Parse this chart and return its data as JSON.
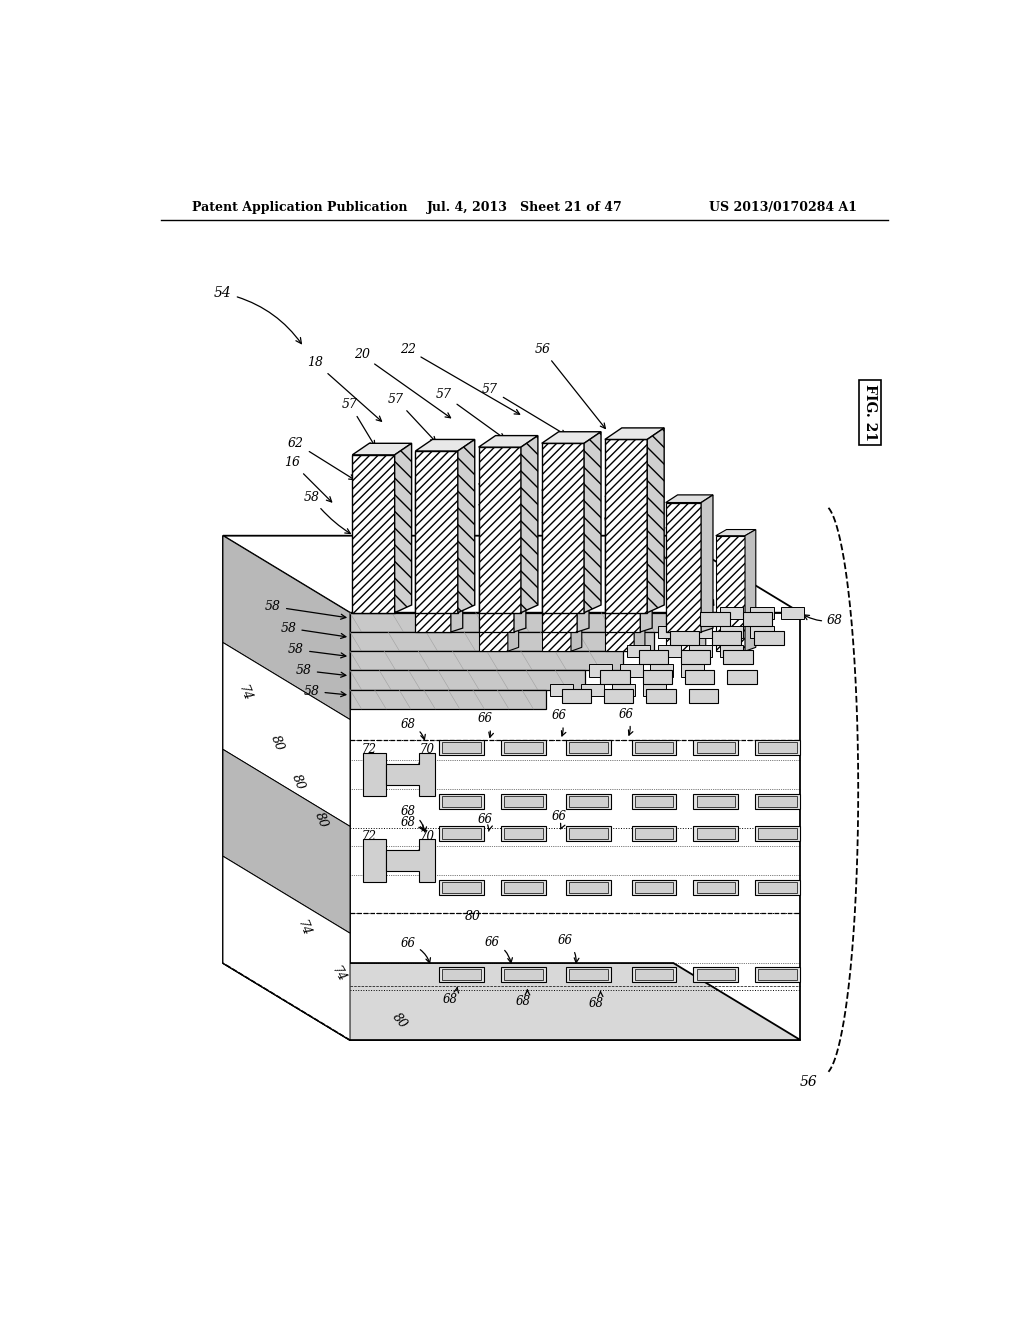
{
  "title_left": "Patent Application Publication",
  "title_center": "Jul. 4, 2013   Sheet 21 of 47",
  "title_right": "US 2013/0170284 A1",
  "fig_label": "FIG. 21",
  "background_color": "#ffffff",
  "line_color": "#000000"
}
